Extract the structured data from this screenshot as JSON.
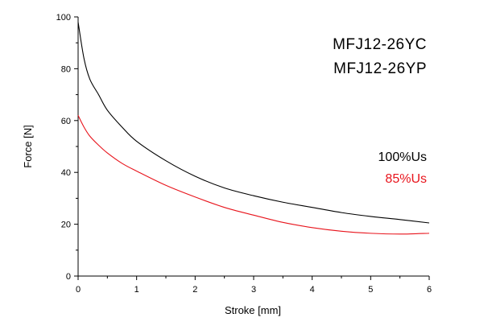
{
  "chart_data": {
    "type": "line",
    "title": "",
    "xlabel": "Stroke [mm]",
    "ylabel": "Force [N]",
    "xlim": [
      0,
      6
    ],
    "ylim": [
      0,
      100
    ],
    "x_ticks": [
      0,
      1,
      2,
      3,
      4,
      5,
      6
    ],
    "y_ticks": [
      0,
      20,
      40,
      60,
      80,
      100
    ],
    "grid": false,
    "legend_placement": "right",
    "annotations": [
      "MFJ12-26YC",
      "MFJ12-26YP"
    ],
    "series": [
      {
        "name": "100%Us",
        "color": "#000000",
        "x": [
          0,
          0.1,
          0.2,
          0.35,
          0.5,
          0.75,
          1,
          1.5,
          2,
          2.5,
          3,
          3.5,
          4,
          4.5,
          5,
          5.5,
          6
        ],
        "y": [
          98,
          84,
          76,
          70,
          64,
          57.5,
          52,
          44.5,
          38.5,
          34,
          31,
          28.5,
          26.5,
          24.5,
          23,
          21.8,
          20.5
        ]
      },
      {
        "name": "85%Us",
        "color": "#e8141c",
        "x": [
          0,
          0.1,
          0.2,
          0.35,
          0.5,
          0.75,
          1,
          1.5,
          2,
          2.5,
          3,
          3.5,
          4,
          4.5,
          5,
          5.5,
          6
        ],
        "y": [
          62,
          57.5,
          54,
          50.5,
          47.5,
          43.5,
          40.5,
          35,
          30.5,
          26.5,
          23.5,
          20.7,
          18.7,
          17.3,
          16.5,
          16.2,
          16.5
        ]
      }
    ]
  }
}
